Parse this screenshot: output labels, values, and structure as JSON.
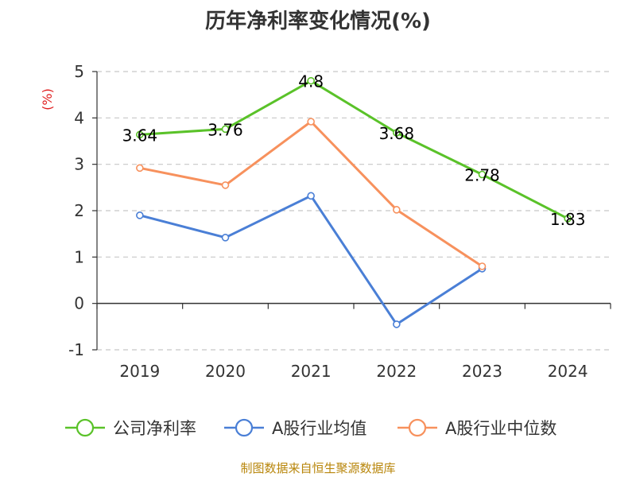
{
  "title": "历年净利率变化情况(%)",
  "source": "制图数据来自恒生聚源数据库",
  "chart_data": {
    "type": "line",
    "title": "历年净利率变化情况(%)",
    "ylabel": "(%)",
    "xlabel": "",
    "categories": [
      "2019",
      "2020",
      "2021",
      "2022",
      "2023",
      "2024"
    ],
    "ylim": [
      -1,
      5
    ],
    "yticks": [
      -1,
      0,
      1,
      2,
      3,
      4,
      5
    ],
    "grid": "horizontal dashed",
    "legend_position": "bottom",
    "series": [
      {
        "name": "公司净利率",
        "color": "#5ac229",
        "values": [
          3.64,
          3.76,
          4.8,
          3.68,
          2.78,
          1.83
        ],
        "show_labels": true
      },
      {
        "name": "A股行业均值",
        "color": "#4a7fd6",
        "values": [
          1.9,
          1.42,
          2.32,
          -0.45,
          0.75,
          null
        ],
        "show_labels": false
      },
      {
        "name": "A股行业中位数",
        "color": "#f7915d",
        "values": [
          2.92,
          2.55,
          3.92,
          2.02,
          0.8,
          null
        ],
        "show_labels": false
      }
    ]
  }
}
